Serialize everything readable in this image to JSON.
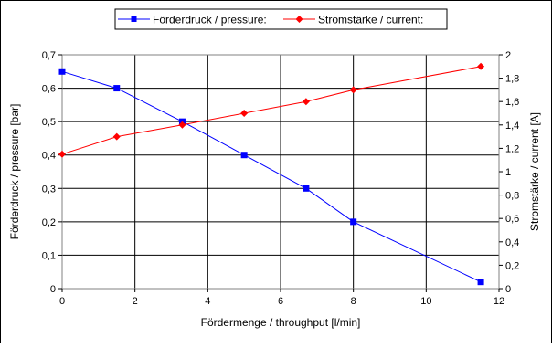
{
  "chart_data": {
    "type": "line",
    "xlabel": "Fördermenge / throughput [l/min]",
    "ylabel": "Förderdruck / pressure [bar]",
    "y2label": "Stromstärke / current [A]",
    "xlim": [
      0,
      12
    ],
    "ylim": [
      0,
      0.7
    ],
    "y2lim": [
      0,
      2
    ],
    "x_ticks": [
      "0",
      "2",
      "4",
      "6",
      "8",
      "10",
      "12"
    ],
    "y_ticks": [
      "0",
      "0,1",
      "0,2",
      "0,3",
      "0,4",
      "0,5",
      "0,6",
      "0,7"
    ],
    "y2_ticks": [
      "0",
      "0,2",
      "0,4",
      "0,6",
      "0,8",
      "1",
      "1,2",
      "1,4",
      "1,6",
      "1,8",
      "2"
    ],
    "grid": true,
    "legend_position": "top-center",
    "series": [
      {
        "name": "Förderdruck / pressure:",
        "axis": "left",
        "color": "#0000ff",
        "marker": "square",
        "x": [
          0,
          1.5,
          3.3,
          5,
          6.7,
          8,
          11.5
        ],
        "y": [
          0.65,
          0.6,
          0.5,
          0.4,
          0.3,
          0.2,
          0.02
        ]
      },
      {
        "name": "Stromstärke / current:",
        "axis": "right",
        "color": "#ff0000",
        "marker": "diamond",
        "x": [
          0,
          1.5,
          3.3,
          5,
          6.7,
          8,
          11.5
        ],
        "y": [
          1.15,
          1.3,
          1.4,
          1.5,
          1.6,
          1.7,
          1.9
        ]
      }
    ]
  }
}
